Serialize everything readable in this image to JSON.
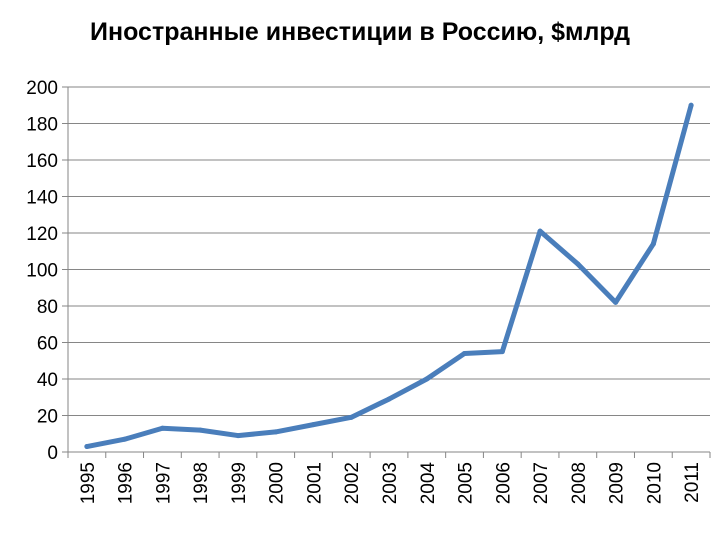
{
  "chart_data": {
    "type": "line",
    "title": "Иностранные инвестиции в Россию, $млрд",
    "xlabel": "",
    "ylabel": "",
    "x": [
      "1995",
      "1996",
      "1997",
      "1998",
      "1999",
      "2000",
      "2001",
      "2002",
      "2003",
      "2004",
      "2005",
      "2006",
      "2007",
      "2008",
      "2009",
      "2010",
      "2011"
    ],
    "series": [
      {
        "values": [
          3,
          7,
          13,
          12,
          9,
          11,
          15,
          19,
          29,
          40,
          54,
          55,
          121,
          103,
          82,
          114,
          190
        ],
        "color": "#4a7ebb"
      }
    ],
    "ylim": [
      0,
      200
    ],
    "yticks": [
      0,
      20,
      40,
      60,
      80,
      100,
      120,
      140,
      160,
      180,
      200
    ],
    "grid": true,
    "legend": "none"
  }
}
